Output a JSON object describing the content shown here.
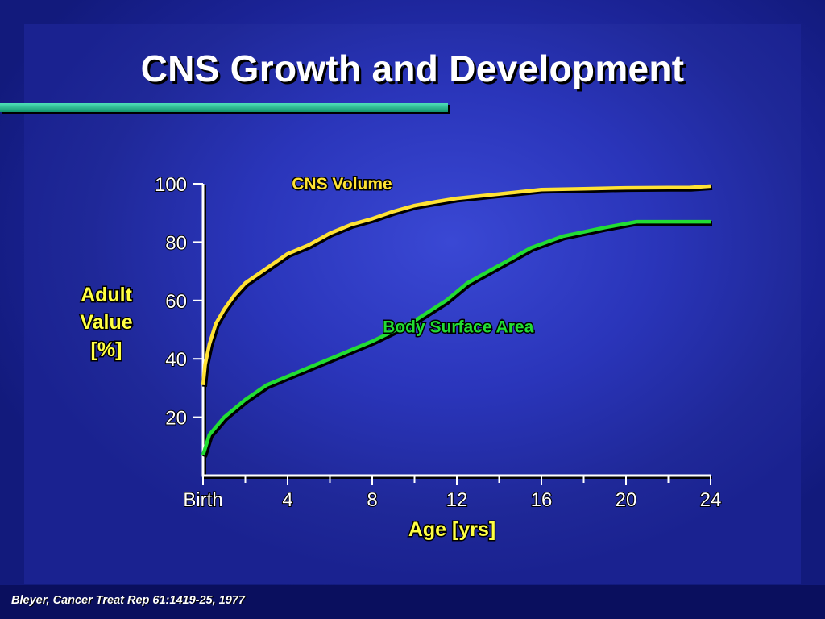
{
  "slide": {
    "title": "CNS Growth and Development",
    "citation": "Bleyer, Cancer Treat Rep 61:1419-25, 1977"
  },
  "chart_data": {
    "type": "line",
    "title": "",
    "xlabel": "Age [yrs]",
    "ylabel": [
      "Adult",
      "Value",
      "[%]"
    ],
    "xlim": [
      0,
      24
    ],
    "ylim": [
      0,
      100
    ],
    "x_ticks": [
      {
        "value": 0,
        "label": "Birth"
      },
      {
        "value": 4,
        "label": "4"
      },
      {
        "value": 8,
        "label": "8"
      },
      {
        "value": 12,
        "label": "12"
      },
      {
        "value": 16,
        "label": "16"
      },
      {
        "value": 20,
        "label": "20"
      },
      {
        "value": 24,
        "label": "24"
      }
    ],
    "x_minor_ticks": [
      2,
      6,
      10,
      14,
      18,
      22
    ],
    "y_ticks": [
      20,
      40,
      60,
      80,
      100
    ],
    "grid": false,
    "series": [
      {
        "name": "CNS Volume",
        "color": "#ffe234",
        "label_at": [
          4.2,
          98
        ],
        "points": [
          [
            0,
            31
          ],
          [
            0.1,
            38
          ],
          [
            0.3,
            45
          ],
          [
            0.6,
            52
          ],
          [
            1,
            57
          ],
          [
            1.5,
            62
          ],
          [
            2,
            66
          ],
          [
            3,
            71
          ],
          [
            4,
            76
          ],
          [
            5,
            79
          ],
          [
            6,
            83
          ],
          [
            7,
            86
          ],
          [
            8,
            88
          ],
          [
            9,
            90.5
          ],
          [
            10,
            92.5
          ],
          [
            11,
            93.8
          ],
          [
            12,
            95
          ],
          [
            14,
            96.5
          ],
          [
            16,
            98
          ],
          [
            18,
            98.3
          ],
          [
            20,
            98.6
          ],
          [
            22,
            98.7
          ],
          [
            23,
            98.7
          ],
          [
            24,
            99.2
          ]
        ]
      },
      {
        "name": "Body Surface Area",
        "color": "#22dd33",
        "label_at": [
          8.5,
          49
        ],
        "points": [
          [
            0,
            7
          ],
          [
            0.3,
            14
          ],
          [
            1,
            20
          ],
          [
            2,
            26
          ],
          [
            3,
            31
          ],
          [
            4,
            34
          ],
          [
            6,
            40
          ],
          [
            8,
            46
          ],
          [
            10,
            53
          ],
          [
            11.5,
            60
          ],
          [
            12.5,
            66
          ],
          [
            14,
            72
          ],
          [
            15.5,
            78
          ],
          [
            17,
            82
          ],
          [
            19,
            85
          ],
          [
            20.5,
            87
          ],
          [
            22,
            87
          ],
          [
            24,
            87
          ]
        ]
      }
    ]
  }
}
